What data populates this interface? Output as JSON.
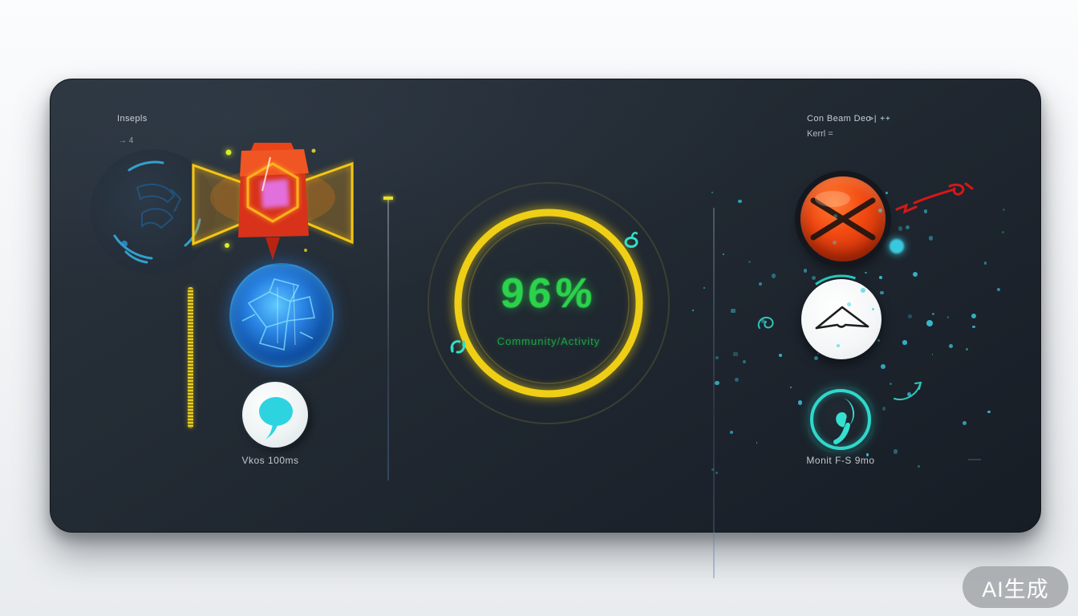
{
  "watermark": {
    "label": "AI生成"
  },
  "panel": {
    "header_left": {
      "title": "Insepls",
      "subtitle": "→ 4"
    },
    "header_right": {
      "line1": "Con Beam Deo",
      "meta": ">| ++",
      "line2": "Kerrl ="
    },
    "left_section": {
      "caption": "Vkos 100ms"
    },
    "gauge": {
      "percent": "96%",
      "caption": "Community/Activity"
    },
    "right_section": {
      "caption": "Monit F-S 9mo"
    }
  },
  "colors": {
    "accent_yellow": "#eecb18",
    "accent_green": "#2bd24b",
    "accent_teal": "#36e0cc",
    "accent_cyan": "#3bd2e8",
    "accent_red": "#e63e0e",
    "panel_bg": "#222a33"
  }
}
